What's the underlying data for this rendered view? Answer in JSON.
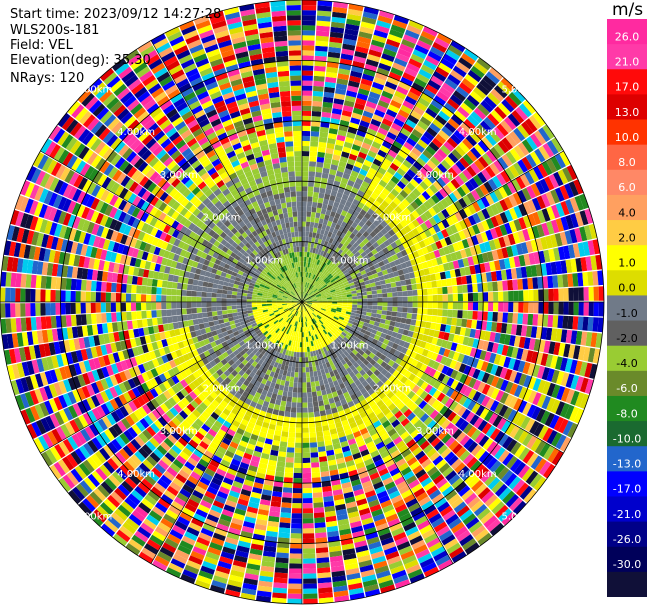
{
  "info": {
    "start_time": "Start time: 2023/09/12 14:27:28",
    "station": "WLS200s-181",
    "field": "Field: VEL",
    "elevation": "Elevation(deg): 35.30",
    "nrays": "NRays: 120"
  },
  "colorbar": {
    "unit": "m/s",
    "ticks": [
      "26.0",
      "21.0",
      "17.0",
      "13.0",
      "10.0",
      "8.0",
      "6.0",
      "4.0",
      "2.0",
      "1.0",
      "0.0",
      "-1.0",
      "-2.0",
      "-4.0",
      "-6.0",
      "-8.0",
      "-10.0",
      "-13.0",
      "-17.0",
      "-21.0",
      "-26.0",
      "-30.0"
    ],
    "colors": [
      "#ff2aa0",
      "#ff3aa8",
      "#ff0a0a",
      "#dd0000",
      "#ff3300",
      "#ff6644",
      "#ff8866",
      "#ffa060",
      "#ffcc44",
      "#ffff00",
      "#dddd00",
      "#707a88",
      "#606060",
      "#99cc33",
      "#6a8a2a",
      "#208a20",
      "#1a6a30",
      "#2266cc",
      "#0000ff",
      "#0000cc",
      "#000088",
      "#00005a",
      "#101038"
    ]
  },
  "chart_data": {
    "type": "heatmap",
    "title": "",
    "field": "VEL",
    "units": "m/s",
    "n_rays": 120,
    "range_ring_labels": [
      "1.00km",
      "2.00km",
      "3.00km",
      "4.00km",
      "5.00km"
    ],
    "range_rings_km": [
      1,
      2,
      3,
      4,
      5
    ],
    "max_range_km": 5,
    "angle_lines_deg": [
      0,
      30,
      60,
      90,
      120,
      150,
      180,
      210,
      240,
      270,
      300,
      330
    ],
    "velocity_scale": [
      26.0,
      21.0,
      17.0,
      13.0,
      10.0,
      8.0,
      6.0,
      4.0,
      2.0,
      1.0,
      0.0,
      -1.0,
      -2.0,
      -4.0,
      -6.0,
      -8.0,
      -10.0,
      -13.0,
      -17.0,
      -21.0,
      -26.0,
      -30.0
    ]
  }
}
